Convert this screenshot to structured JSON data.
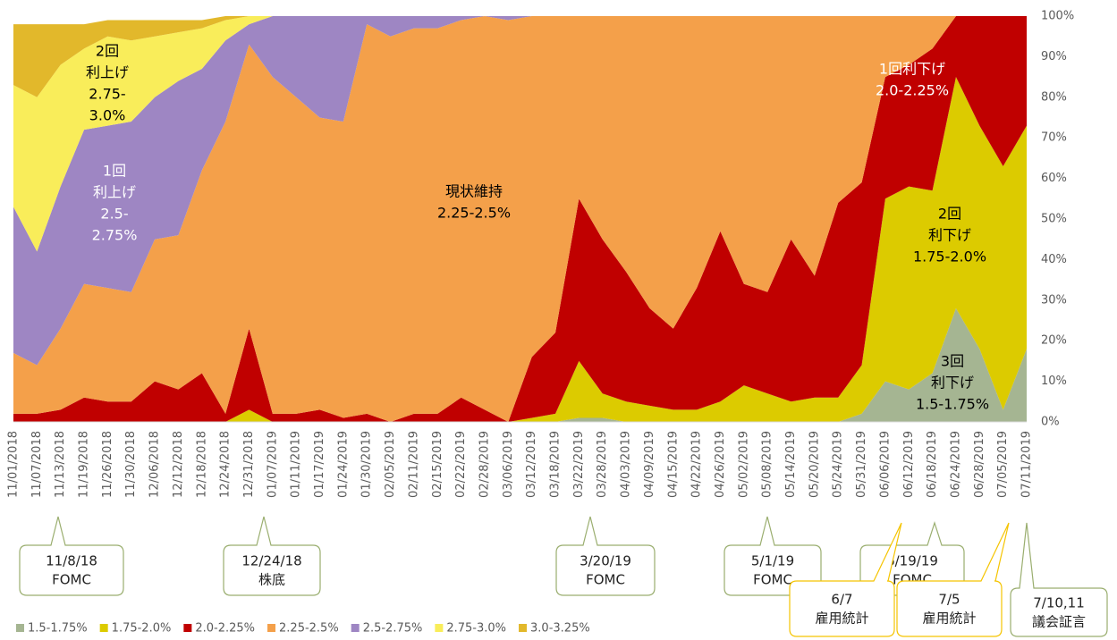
{
  "chart_data": {
    "type": "stacked-area",
    "categories": [
      "11/01/2018",
      "11/07/2018",
      "11/13/2018",
      "11/19/2018",
      "11/26/2018",
      "11/30/2018",
      "12/06/2018",
      "12/12/2018",
      "12/18/2018",
      "12/24/2018",
      "12/31/2018",
      "01/07/2019",
      "01/11/2019",
      "01/17/2019",
      "01/24/2019",
      "01/30/2019",
      "02/05/2019",
      "02/11/2019",
      "02/15/2019",
      "02/22/2019",
      "02/28/2019",
      "03/06/2019",
      "03/12/2019",
      "03/18/2019",
      "03/22/2019",
      "03/28/2019",
      "04/03/2019",
      "04/09/2019",
      "04/15/2019",
      "04/22/2019",
      "04/26/2019",
      "05/02/2019",
      "05/08/2019",
      "05/14/2019",
      "05/20/2019",
      "05/24/2019",
      "05/31/2019",
      "06/06/2019",
      "06/12/2019",
      "06/18/2019",
      "06/24/2019",
      "06/28/2019",
      "07/05/2019",
      "07/11/2019"
    ],
    "series": [
      {
        "name": "1.5-1.75%",
        "color": "#a5b592",
        "values": [
          0,
          0,
          0,
          0,
          0,
          0,
          0,
          0,
          0,
          0,
          0,
          0,
          0,
          0,
          0,
          0,
          0,
          0,
          0,
          0,
          0,
          0,
          0,
          0,
          1,
          1,
          0,
          0,
          0,
          0,
          0,
          0,
          0,
          0,
          0,
          0,
          2,
          10,
          8,
          12,
          28,
          18,
          3,
          18
        ]
      },
      {
        "name": "1.75-2.0%",
        "color": "#dccb00",
        "values": [
          0,
          0,
          0,
          0,
          0,
          0,
          0,
          0,
          0,
          0,
          3,
          0,
          0,
          0,
          0,
          0,
          0,
          0,
          0,
          0,
          0,
          0,
          1,
          2,
          14,
          6,
          5,
          4,
          3,
          3,
          5,
          9,
          7,
          5,
          6,
          6,
          12,
          45,
          50,
          45,
          57,
          55,
          60,
          55
        ]
      },
      {
        "name": "2.0-2.25%",
        "color": "#c00000",
        "values": [
          2,
          2,
          3,
          6,
          5,
          5,
          10,
          8,
          12,
          2,
          20,
          2,
          2,
          3,
          1,
          2,
          0,
          2,
          2,
          6,
          3,
          0,
          15,
          20,
          40,
          38,
          32,
          24,
          20,
          30,
          42,
          25,
          25,
          40,
          30,
          48,
          45,
          30,
          30,
          35,
          15,
          27,
          37,
          27
        ]
      },
      {
        "name": "2.25-2.5%",
        "color": "#f4a04a",
        "values": [
          15,
          12,
          20,
          28,
          28,
          27,
          35,
          38,
          50,
          72,
          70,
          83,
          78,
          72,
          73,
          96,
          95,
          95,
          95,
          93,
          97,
          99,
          84,
          78,
          45,
          55,
          63,
          72,
          77,
          67,
          53,
          66,
          68,
          55,
          64,
          46,
          41,
          15,
          12,
          8,
          0,
          0,
          0,
          0
        ]
      },
      {
        "name": "2.5-2.75%",
        "color": "#9e86c3",
        "values": [
          36,
          28,
          35,
          38,
          40,
          42,
          35,
          38,
          25,
          20,
          5,
          15,
          20,
          25,
          26,
          2,
          5,
          3,
          3,
          1,
          0,
          1,
          0,
          0,
          0,
          0,
          0,
          0,
          0,
          0,
          0,
          0,
          0,
          0,
          0,
          0,
          0,
          0,
          0,
          0,
          0,
          0,
          0,
          0
        ]
      },
      {
        "name": "2.75-3.0%",
        "color": "#f9ed5a",
        "values": [
          30,
          38,
          30,
          20,
          22,
          20,
          15,
          12,
          10,
          5,
          2,
          0,
          0,
          0,
          0,
          0,
          0,
          0,
          0,
          0,
          0,
          0,
          0,
          0,
          0,
          0,
          0,
          0,
          0,
          0,
          0,
          0,
          0,
          0,
          0,
          0,
          0,
          0,
          0,
          0,
          0,
          0,
          0,
          0
        ]
      },
      {
        "name": "3.0-3.25%",
        "color": "#e2b82b",
        "values": [
          15,
          18,
          10,
          6,
          4,
          5,
          4,
          3,
          2,
          1,
          0,
          0,
          0,
          0,
          0,
          0,
          0,
          0,
          0,
          0,
          0,
          0,
          0,
          0,
          0,
          0,
          0,
          0,
          0,
          0,
          0,
          0,
          0,
          0,
          0,
          0,
          0,
          0,
          0,
          0,
          0,
          0,
          0,
          0
        ]
      }
    ],
    "ylim": [
      0,
      100
    ],
    "yticks": [
      {
        "value": 0,
        "label": "0%"
      },
      {
        "value": 10,
        "label": "10%"
      },
      {
        "value": 20,
        "label": "20%"
      },
      {
        "value": 30,
        "label": "30%"
      },
      {
        "value": 40,
        "label": "40%"
      },
      {
        "value": 50,
        "label": "50%"
      },
      {
        "value": 60,
        "label": "60%"
      },
      {
        "value": 70,
        "label": "70%"
      },
      {
        "value": 80,
        "label": "80%"
      },
      {
        "value": 90,
        "label": "90%"
      },
      {
        "value": 100,
        "label": "100%"
      }
    ],
    "legend": "bottom",
    "annotations": [
      {
        "lines": [
          "2回",
          "利上げ",
          "2.75-",
          "3.0%"
        ]
      },
      {
        "lines": [
          "1回",
          "利上げ",
          "2.5-",
          "2.75%"
        ]
      },
      {
        "lines": [
          "現状維持",
          "2.25-2.5%"
        ]
      },
      {
        "lines": [
          "1回利下げ",
          "2.0-2.25%"
        ]
      },
      {
        "lines": [
          "2回",
          "利下げ",
          "1.75-2.0%"
        ]
      },
      {
        "lines": [
          "3回",
          "利下げ",
          "1.5-1.75%"
        ]
      }
    ],
    "callouts": [
      {
        "lines": [
          "11/8/18",
          "FOMC"
        ]
      },
      {
        "lines": [
          "12/24/18",
          "株底"
        ]
      },
      {
        "lines": [
          "3/20/19",
          "FOMC"
        ]
      },
      {
        "lines": [
          "5/1/19",
          "FOMC"
        ]
      },
      {
        "lines": [
          "6/19/19",
          "FOMC"
        ]
      },
      {
        "lines": [
          "6/7",
          "雇用統計"
        ]
      },
      {
        "lines": [
          "7/5",
          "雇用統計"
        ]
      },
      {
        "lines": [
          "7/10,11",
          "議会証言"
        ]
      }
    ]
  }
}
